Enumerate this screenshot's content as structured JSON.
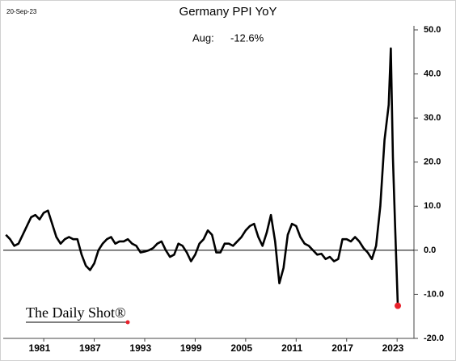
{
  "chart_data": {
    "type": "line",
    "title": "Germany PPI YoY",
    "date_stamp": "20-Sep-23",
    "annotation": {
      "label": "Aug:",
      "value_text": "-12.6%"
    },
    "watermark": "The Daily Shot®",
    "xlim": [
      1976.3,
      2025.5
    ],
    "xticks": [
      1981,
      1987,
      1993,
      1999,
      2005,
      2011,
      2017,
      2023
    ],
    "ylim": [
      -20,
      50
    ],
    "yticks": [
      {
        "value": -20,
        "label": "-20.0"
      },
      {
        "value": -10,
        "label": "-10.0"
      },
      {
        "value": 0,
        "label": "0.0"
      },
      {
        "value": 10,
        "label": "10.0"
      },
      {
        "value": 20,
        "label": "20.0"
      },
      {
        "value": 30,
        "label": "30.0"
      },
      {
        "value": 40,
        "label": "40.0"
      },
      {
        "value": 50,
        "label": "50.0"
      }
    ],
    "zero_line": true,
    "last_point_color": "#e8212b",
    "series": [
      {
        "name": "Germany PPI YoY",
        "color": "#000000",
        "x": [
          1977.0,
          1977.5,
          1978.0,
          1978.5,
          1979.0,
          1979.5,
          1980.0,
          1980.5,
          1981.0,
          1981.5,
          1982.0,
          1982.5,
          1983.0,
          1983.5,
          1984.0,
          1984.5,
          1985.0,
          1985.5,
          1986.0,
          1986.5,
          1987.0,
          1987.5,
          1988.0,
          1988.5,
          1989.0,
          1989.5,
          1990.0,
          1990.5,
          1991.0,
          1991.5,
          1992.0,
          1992.5,
          1993.0,
          1993.5,
          1994.0,
          1994.5,
          1995.0,
          1995.5,
          1996.0,
          1996.5,
          1997.0,
          1997.5,
          1998.0,
          1998.5,
          1999.0,
          1999.5,
          2000.0,
          2000.5,
          2001.0,
          2001.5,
          2002.0,
          2002.5,
          2003.0,
          2003.5,
          2004.0,
          2004.5,
          2005.0,
          2005.5,
          2006.0,
          2006.5,
          2007.0,
          2007.5,
          2008.0,
          2008.5,
          2009.0,
          2009.5,
          2010.0,
          2010.5,
          2011.0,
          2011.5,
          2012.0,
          2012.5,
          2013.0,
          2013.5,
          2014.0,
          2014.5,
          2015.0,
          2015.5,
          2016.0,
          2016.5,
          2017.0,
          2017.5,
          2018.0,
          2018.5,
          2019.0,
          2019.5,
          2020.0,
          2020.5,
          2021.0,
          2021.5,
          2022.0,
          2022.5,
          2022.75,
          2023.0,
          2023.25,
          2023.58
        ],
        "values": [
          3.5,
          2.5,
          1,
          1.5,
          3.5,
          5.5,
          7.5,
          8,
          7,
          8.5,
          9,
          6,
          3,
          1.5,
          2.5,
          3,
          2.5,
          2.5,
          -1,
          -3.5,
          -4.5,
          -3,
          0,
          1.5,
          2.5,
          3,
          1.5,
          2,
          2,
          2.5,
          1.5,
          1,
          -0.5,
          -0.3,
          0,
          0.5,
          1.5,
          2,
          0,
          -1.5,
          -1,
          1.5,
          1,
          -0.5,
          -2.5,
          -1,
          1.5,
          2.5,
          4.5,
          3.5,
          -0.5,
          -0.5,
          1.5,
          1.5,
          1,
          2,
          3,
          4.5,
          5.5,
          6,
          3,
          1,
          4,
          8,
          2,
          -7.5,
          -4,
          3.5,
          6,
          5.5,
          3,
          1.5,
          1,
          0,
          -1,
          -0.8,
          -2,
          -1.5,
          -2.5,
          -2,
          2.5,
          2.5,
          2,
          3,
          2,
          0.5,
          -0.5,
          -2,
          1,
          10,
          25,
          33,
          45.8,
          21,
          6,
          -12.6
        ]
      }
    ]
  }
}
